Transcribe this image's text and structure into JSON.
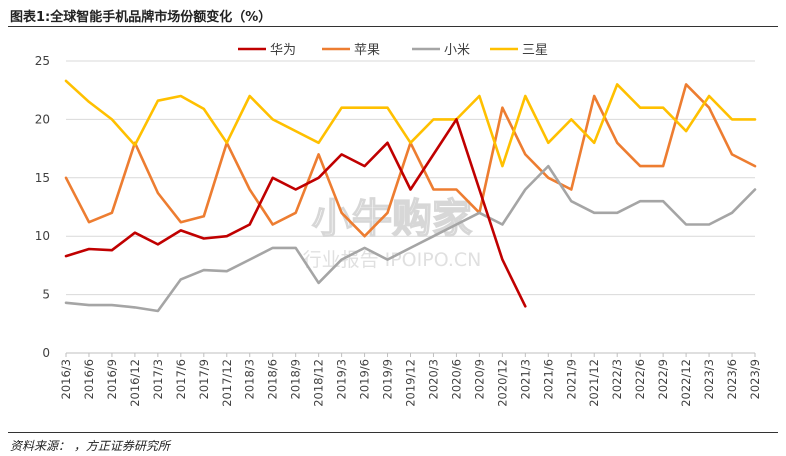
{
  "header": {
    "title": "图表1:全球智能手机品牌市场份额变化（%）"
  },
  "footer": {
    "source": "资料来源：      ，方正证券研究所"
  },
  "watermark": {
    "brand": "小牛购家",
    "subtitle": "行业报告 IPOIPO.CN"
  },
  "chart_data": {
    "type": "line",
    "categories": [
      "2016/3",
      "2016/6",
      "2016/9",
      "2016/12",
      "2017/3",
      "2017/6",
      "2017/9",
      "2017/12",
      "2018/3",
      "2018/6",
      "2018/9",
      "2018/12",
      "2019/3",
      "2019/6",
      "2019/9",
      "2019/12",
      "2020/3",
      "2020/6",
      "2020/9",
      "2020/12",
      "2021/3",
      "2021/6",
      "2021/9",
      "2021/12",
      "2022/3",
      "2022/6",
      "2022/9",
      "2022/12",
      "2023/3",
      "2023/6",
      "2023/9"
    ],
    "ylim": [
      0,
      25
    ],
    "yticks": [
      0,
      5,
      10,
      15,
      20,
      25
    ],
    "legend_position": "top",
    "grid": true,
    "series": [
      {
        "name": "华为",
        "color": "#c00000",
        "values": [
          8.3,
          8.9,
          8.8,
          10.3,
          9.3,
          10.5,
          9.8,
          10.0,
          11.0,
          15.0,
          14.0,
          15.0,
          17.0,
          16.0,
          18.0,
          14.0,
          17.0,
          20.0,
          14.0,
          8.0,
          4.0,
          null,
          null,
          null,
          null,
          null,
          null,
          null,
          null,
          null,
          null
        ]
      },
      {
        "name": "苹果",
        "color": "#ed7d31",
        "values": [
          15.0,
          11.2,
          12.0,
          18.0,
          13.7,
          11.2,
          11.7,
          18.0,
          14.0,
          11.0,
          12.0,
          17.0,
          12.0,
          10.0,
          12.0,
          18.0,
          14.0,
          14.0,
          12.0,
          21.0,
          17.0,
          15.0,
          14.0,
          22.0,
          18.0,
          16.0,
          16.0,
          23.0,
          21.0,
          17.0,
          16.0
        ]
      },
      {
        "name": "小米",
        "color": "#a5a5a5",
        "values": [
          4.3,
          4.1,
          4.1,
          3.9,
          3.6,
          6.3,
          7.1,
          7.0,
          8.0,
          9.0,
          9.0,
          6.0,
          8.0,
          9.0,
          8.0,
          9.0,
          10.0,
          11.0,
          12.0,
          11.0,
          14.0,
          16.0,
          13.0,
          12.0,
          12.0,
          13.0,
          13.0,
          11.0,
          11.0,
          12.0,
          14.0
        ]
      },
      {
        "name": "三星",
        "color": "#ffc000",
        "values": [
          23.3,
          21.5,
          20.0,
          17.8,
          21.6,
          22.0,
          20.9,
          18.0,
          22.0,
          20.0,
          19.0,
          18.0,
          21.0,
          21.0,
          21.0,
          18.0,
          20.0,
          20.0,
          22.0,
          16.0,
          22.0,
          18.0,
          20.0,
          18.0,
          23.0,
          21.0,
          21.0,
          19.0,
          22.0,
          20.0,
          20.0
        ]
      }
    ]
  }
}
